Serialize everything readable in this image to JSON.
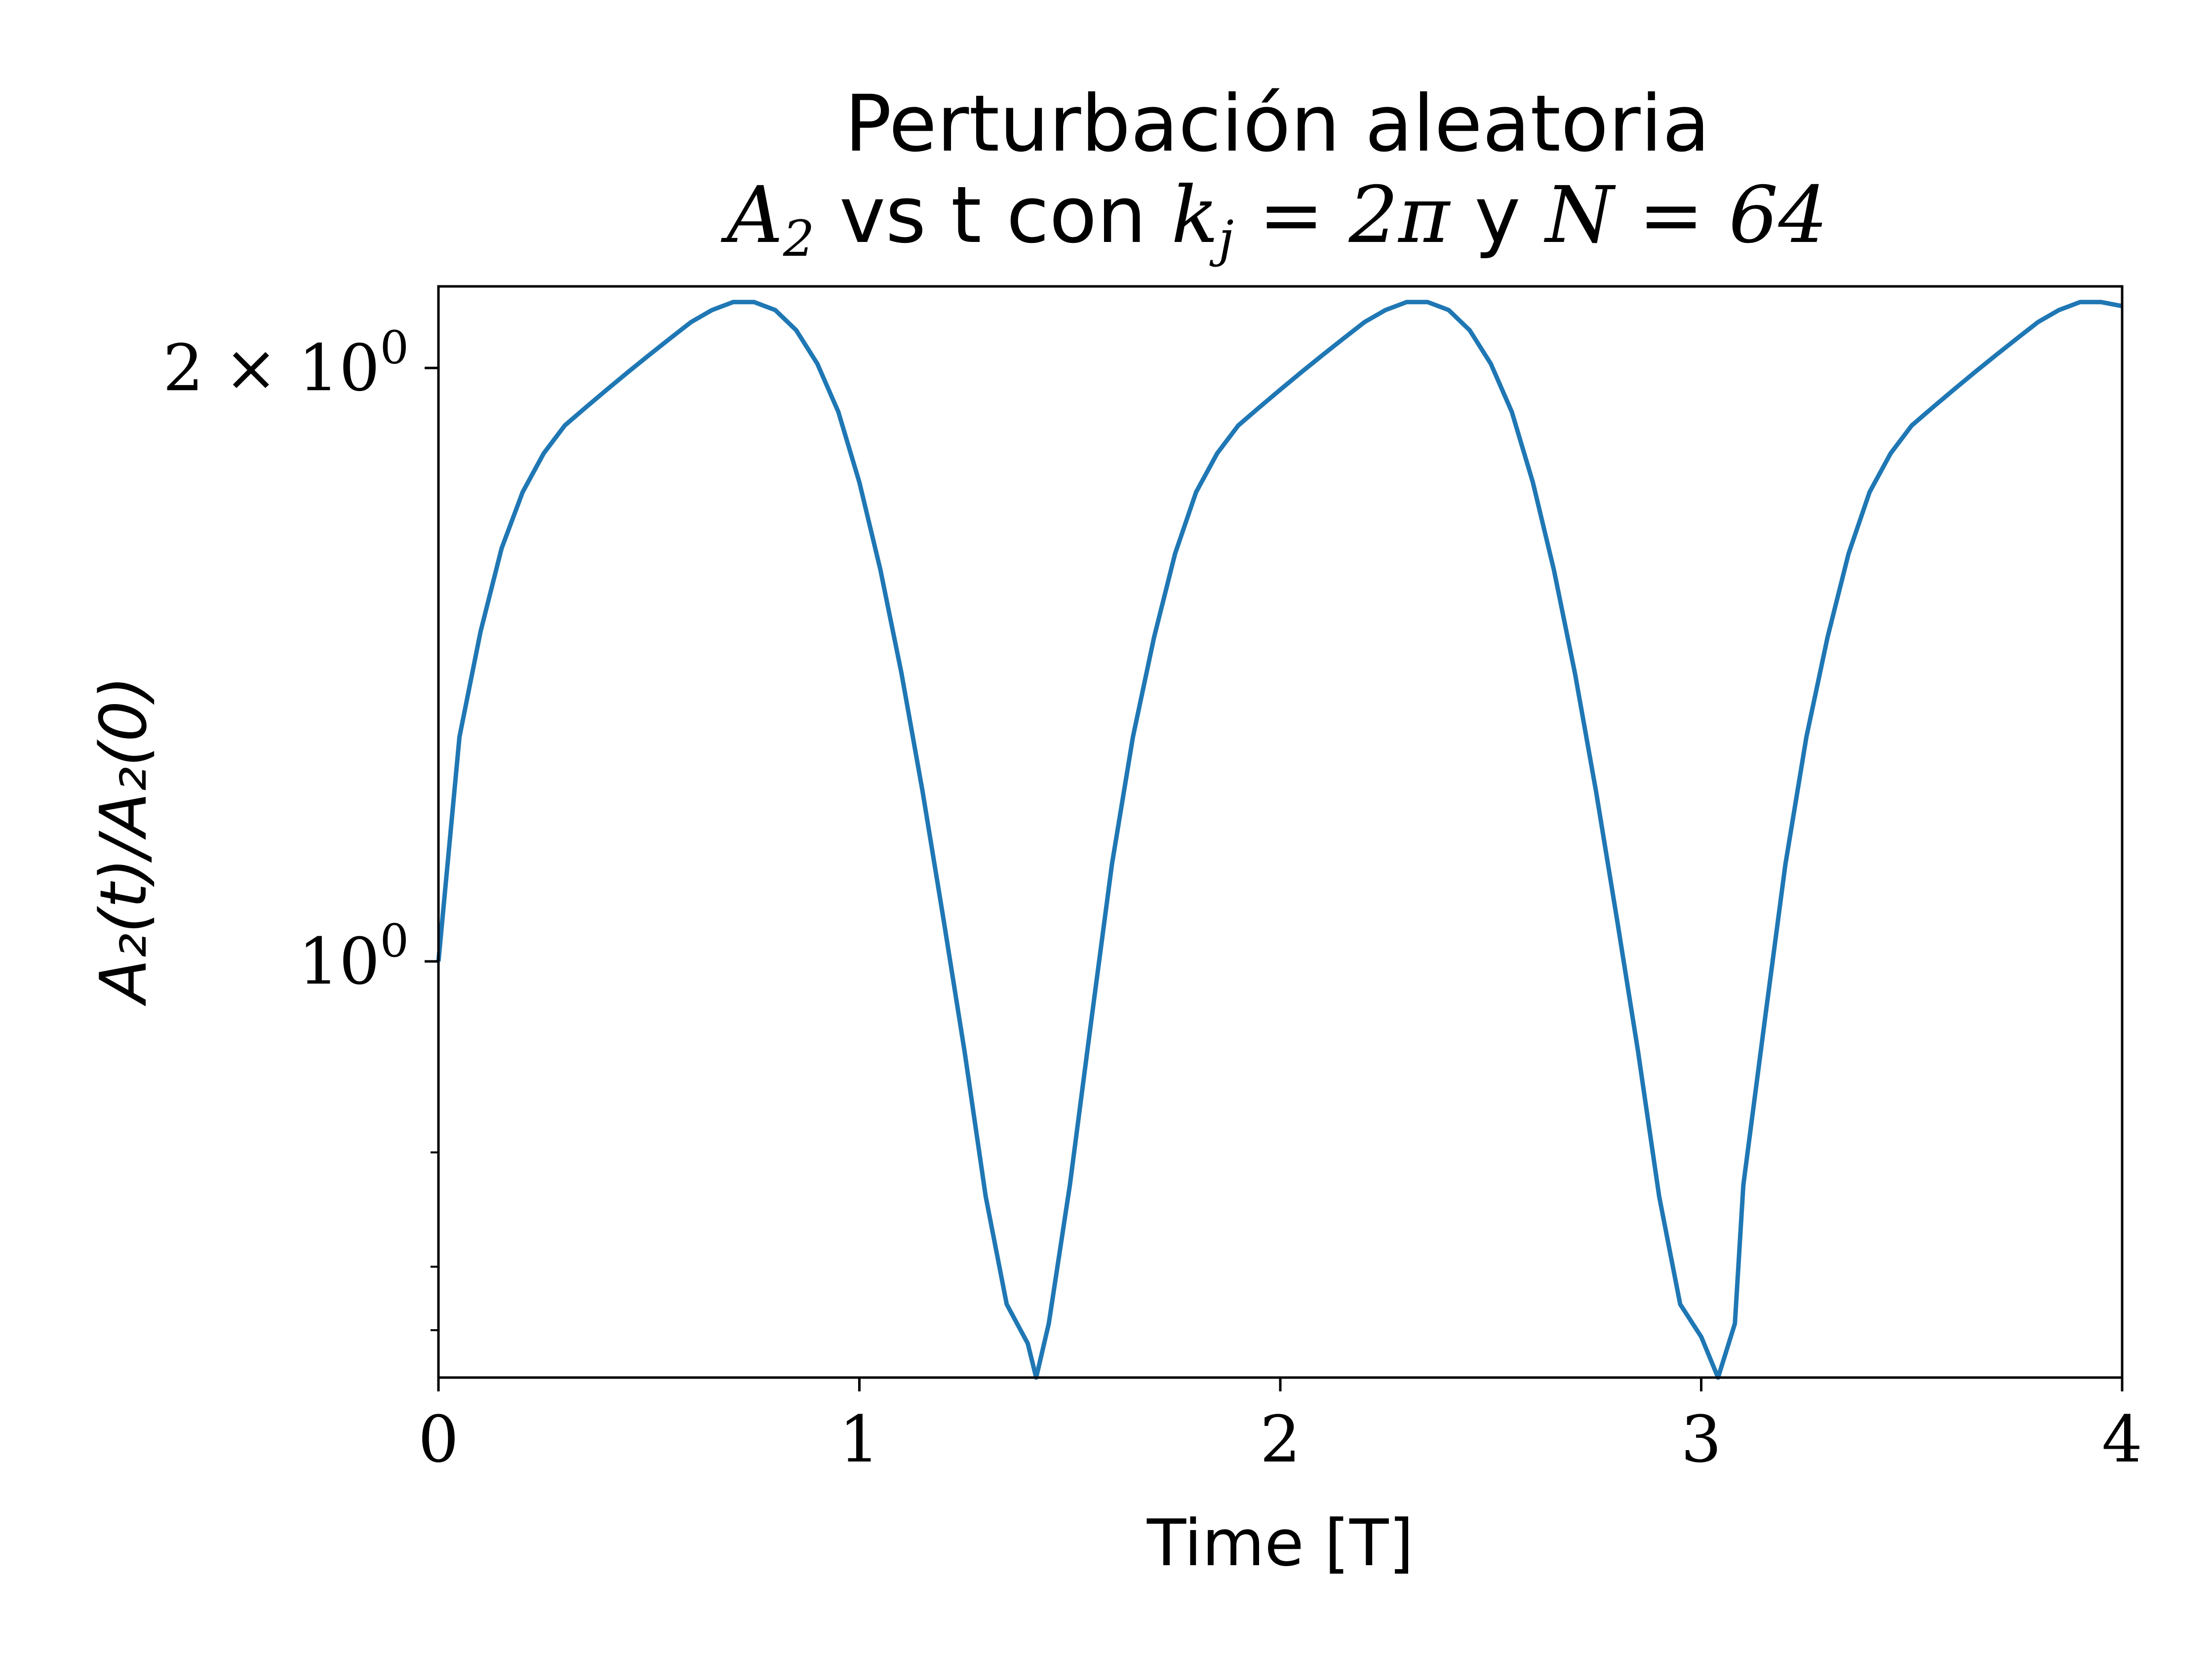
{
  "chart_data": {
    "type": "line",
    "title_line1": "Perturbación aleatoria",
    "title_line2": {
      "a2": "A",
      "a2_sub": "2",
      "mid": " vs t con ",
      "k": "k",
      "k_sub": "j",
      "eq1": " = 2π",
      "y": " y ",
      "n": "N",
      "eq2": " = 64"
    },
    "xlabel": "Time [T]",
    "ylabel": "A₂(t)/A₂(0)",
    "xlim": [
      0,
      4
    ],
    "ylim": [
      0.615,
      2.2
    ],
    "yscale": "log",
    "xticks": [
      {
        "value": 0,
        "label": "0"
      },
      {
        "value": 1,
        "label": "1"
      },
      {
        "value": 2,
        "label": "2"
      },
      {
        "value": 3,
        "label": "3"
      },
      {
        "value": 4,
        "label": "4"
      }
    ],
    "yticks_major": [
      {
        "value": 1,
        "label": "10",
        "sup": "0"
      },
      {
        "value": 2,
        "label": "2 × 10",
        "sup": "0"
      }
    ],
    "yticks_minor": [
      0.65,
      0.7,
      0.8,
      3
    ],
    "grid": false,
    "series": [
      {
        "color": "#1f77b4",
        "x": [
          0.0,
          0.05,
          0.1,
          0.15,
          0.2,
          0.25,
          0.3,
          0.35,
          0.4,
          0.45,
          0.5,
          0.55,
          0.6,
          0.65,
          0.7,
          0.75,
          0.8,
          0.85,
          0.9,
          0.95,
          1.0,
          1.05,
          1.1,
          1.15,
          1.2,
          1.25,
          1.3,
          1.35,
          1.4,
          1.42,
          1.45,
          1.5,
          1.55,
          1.6,
          1.65,
          1.7,
          1.75,
          1.8,
          1.85,
          1.9,
          1.95,
          2.0,
          2.05,
          2.1,
          2.15,
          2.2,
          2.25,
          2.3,
          2.35,
          2.4,
          2.45,
          2.5,
          2.55,
          2.6,
          2.65,
          2.7,
          2.75,
          2.8,
          2.85,
          2.9,
          2.95,
          3.0,
          3.04,
          3.08,
          3.1,
          3.15,
          3.2,
          3.25,
          3.3,
          3.35,
          3.4,
          3.45,
          3.5,
          3.55,
          3.6,
          3.65,
          3.7,
          3.75,
          3.8,
          3.85,
          3.9,
          3.95,
          4.0
        ],
        "y": [
          1.0,
          1.3,
          1.47,
          1.62,
          1.73,
          1.81,
          1.87,
          1.91,
          1.95,
          1.99,
          2.03,
          2.07,
          2.11,
          2.14,
          2.16,
          2.16,
          2.14,
          2.09,
          2.01,
          1.9,
          1.75,
          1.58,
          1.4,
          1.22,
          1.05,
          0.9,
          0.76,
          0.67,
          0.64,
          0.615,
          0.655,
          0.77,
          0.93,
          1.12,
          1.3,
          1.46,
          1.61,
          1.73,
          1.81,
          1.87,
          1.91,
          1.95,
          1.99,
          2.03,
          2.07,
          2.11,
          2.14,
          2.16,
          2.16,
          2.14,
          2.09,
          2.01,
          1.9,
          1.75,
          1.58,
          1.4,
          1.22,
          1.05,
          0.9,
          0.76,
          0.67,
          0.645,
          0.615,
          0.655,
          0.77,
          0.93,
          1.12,
          1.3,
          1.46,
          1.61,
          1.73,
          1.81,
          1.87,
          1.91,
          1.95,
          1.99,
          2.03,
          2.07,
          2.11,
          2.14,
          2.16,
          2.16,
          2.15
        ]
      }
    ]
  }
}
